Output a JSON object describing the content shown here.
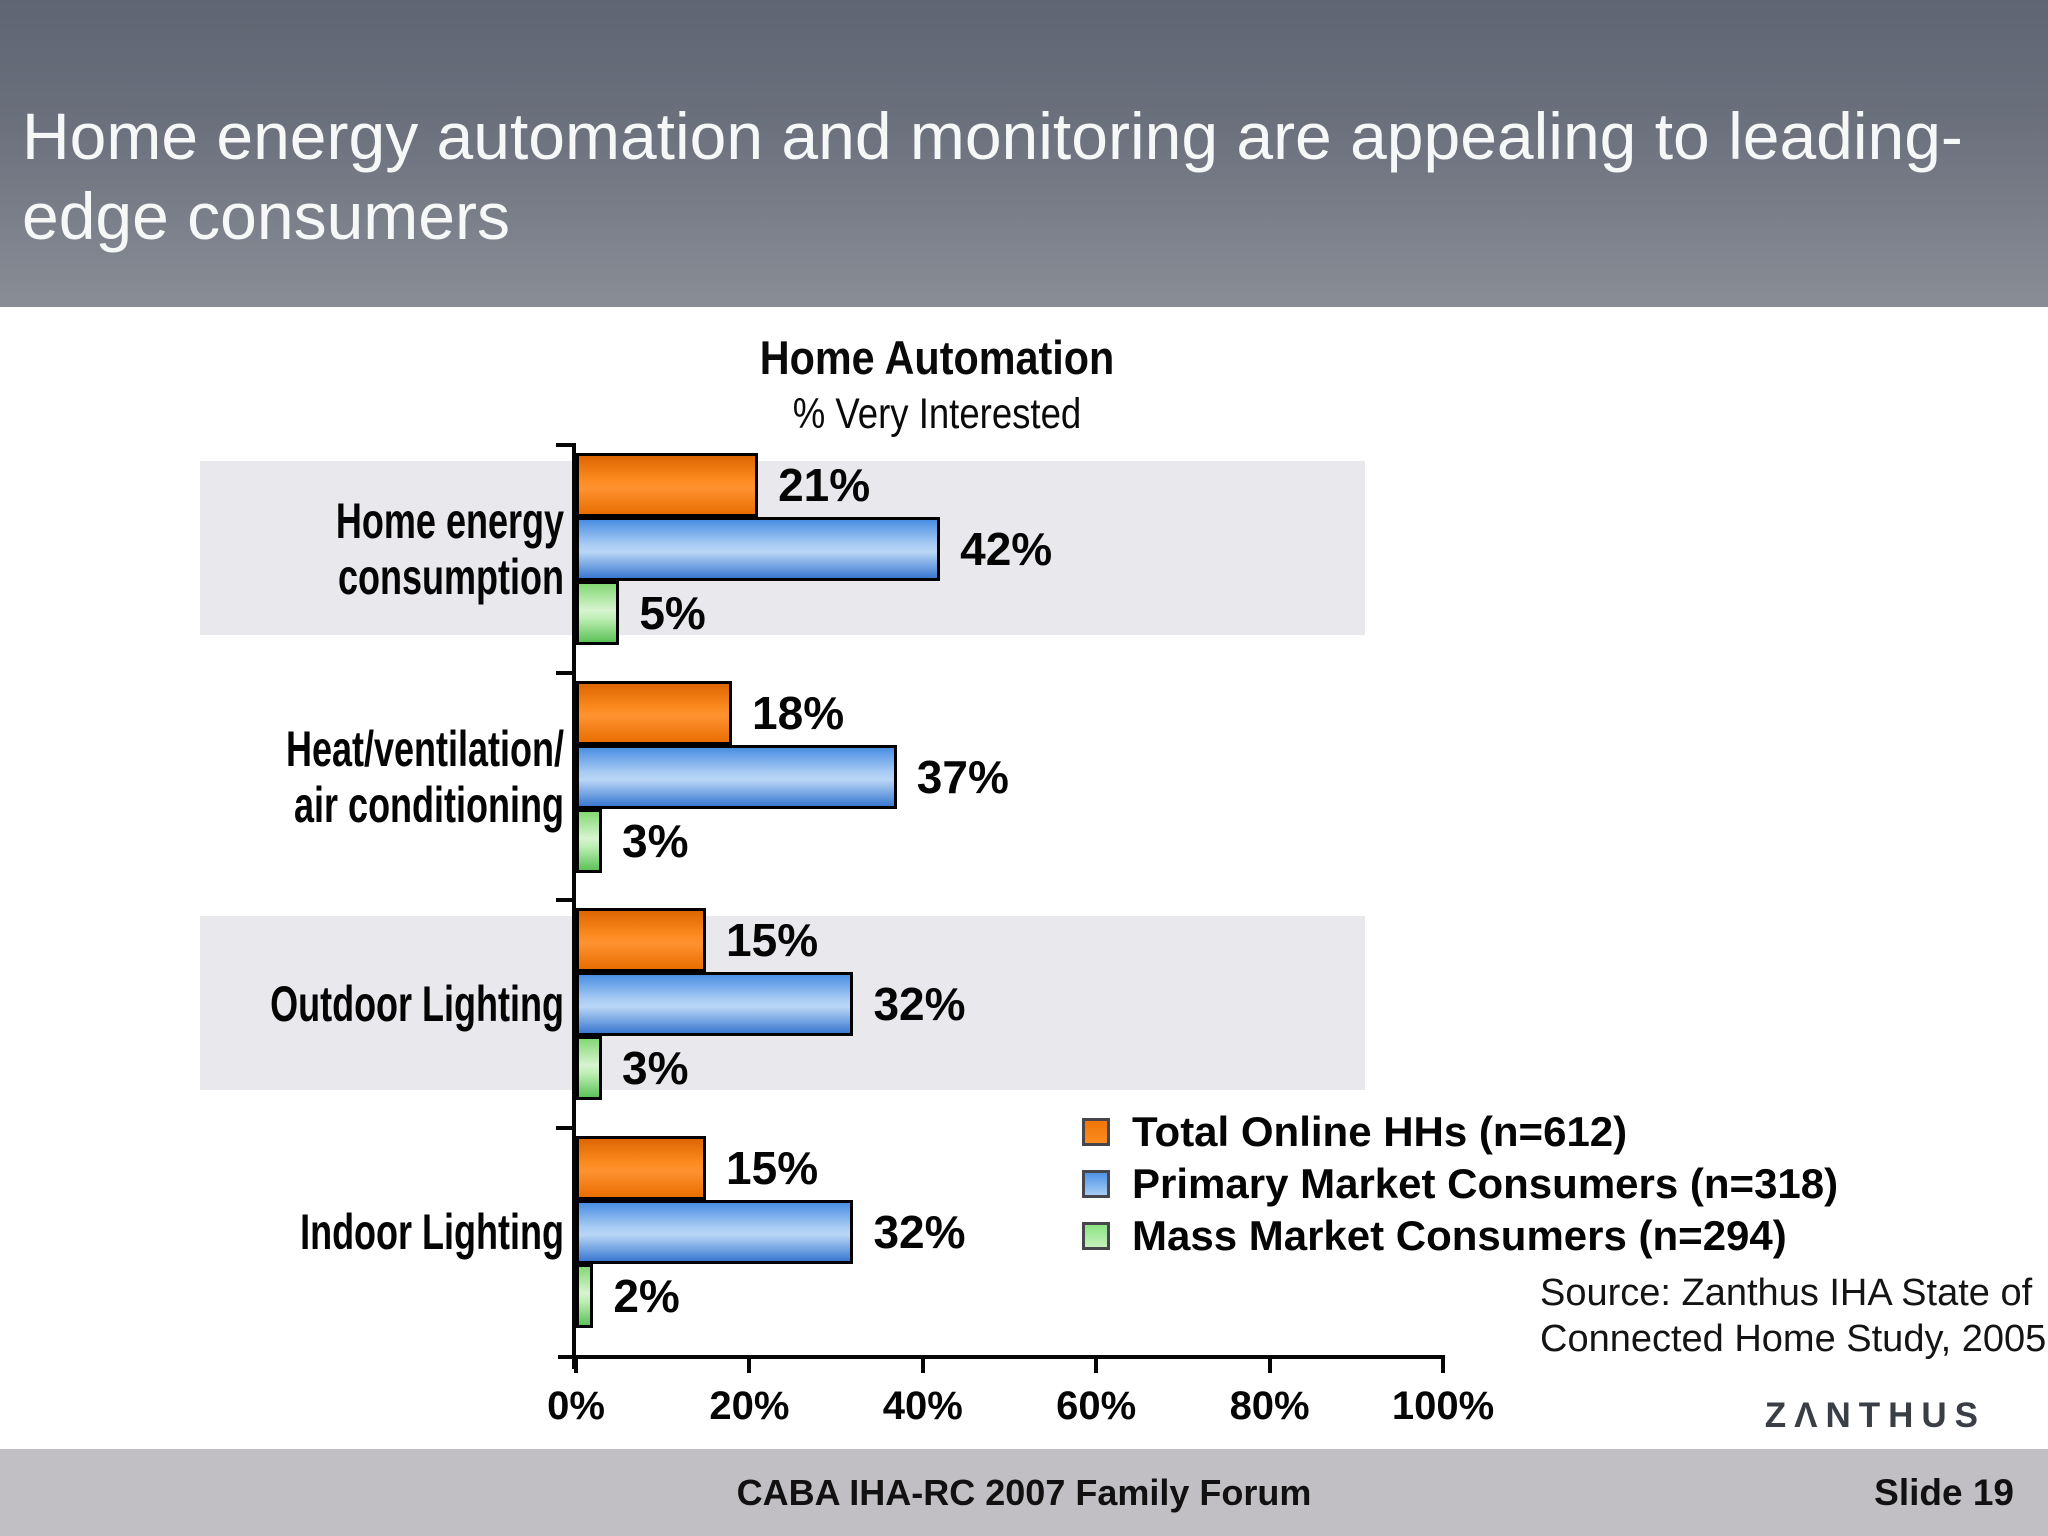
{
  "slide": {
    "title_lines": [
      "Home energy automation and monitoring are appealing to leading-",
      "edge consumers"
    ],
    "source_line1": "Source: Zanthus IHA State of",
    "source_line2": "Connected Home Study, 2005",
    "logo_text": "ZΛNTHUS",
    "footer_center": "CABA IHA-RC 2007 Family Forum",
    "footer_right": "Slide 19"
  },
  "chart_data": {
    "type": "bar",
    "orientation": "horizontal",
    "title": "Home Automation",
    "subtitle": "% Very Interested",
    "categories": [
      {
        "label": "Home energy consumption",
        "lines": [
          "Home energy",
          "consumption"
        ]
      },
      {
        "label": "Heat/ventilation/air conditioning",
        "lines": [
          "Heat/ventilation/",
          "air conditioning"
        ]
      },
      {
        "label": "Outdoor Lighting",
        "lines": [
          "Outdoor Lighting"
        ]
      },
      {
        "label": "Indoor Lighting",
        "lines": [
          "Indoor Lighting"
        ]
      }
    ],
    "series": [
      {
        "name": "Total Online HHs (n=612)",
        "color": "#f57e14",
        "values": [
          21,
          18,
          15,
          15
        ]
      },
      {
        "name": "Primary Market Consumers (n=318)",
        "color": "#5b9ce8",
        "values": [
          42,
          37,
          32,
          32
        ]
      },
      {
        "name": "Mass Market Consumers (n=294)",
        "color": "#8ede85",
        "values": [
          5,
          3,
          3,
          2
        ]
      }
    ],
    "value_label_format": "{v}%",
    "x_axis": {
      "min": 0,
      "max": 100,
      "tick_labels": [
        "0%",
        "20%",
        "40%",
        "60%",
        "80%",
        "100%"
      ]
    },
    "row_shading_color": "#e9e8ec",
    "shaded_rows": [
      0,
      2
    ],
    "legend_position": "bottom-right",
    "grid": false
  }
}
